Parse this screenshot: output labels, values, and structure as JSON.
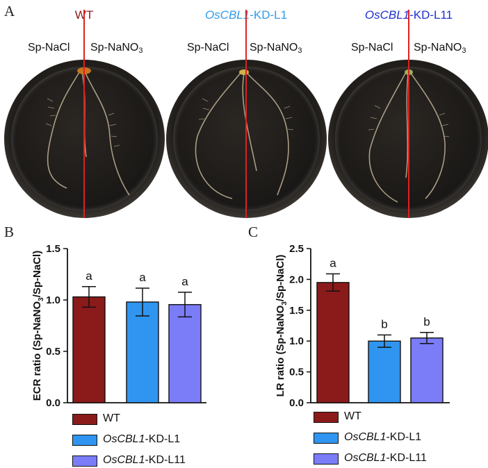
{
  "panel_labels": {
    "a": "A",
    "b": "B",
    "c": "C"
  },
  "photos": {
    "genotypes": [
      {
        "italic": "",
        "text": "WT",
        "color": "#8b1a1a"
      },
      {
        "italic": "OsCBL1",
        "text": "-KD-L1",
        "color": "#2f9be8"
      },
      {
        "italic": "OsCBL1",
        "text": "-KD-L11",
        "color": "#1f2fd0"
      }
    ],
    "condition_left": "Sp-NaCl",
    "condition_right_base": "Sp-NaNO",
    "condition_right_sub": "3"
  },
  "legend": [
    {
      "italic": "",
      "text": "WT",
      "color": "#8b1a1a"
    },
    {
      "italic": "OsCBL1",
      "text": "-KD-L1",
      "color": "#2f95f0"
    },
    {
      "italic": "OsCBL1",
      "text": "-KD-L11",
      "color": "#7b7cf7"
    }
  ],
  "chart_data": [
    {
      "type": "bar",
      "ylabel": "ECR ratio (Sp-NaNO3/Sp-NaCl)",
      "ylabel_parts": {
        "pre": "ECR ratio (Sp-NaNO",
        "sub": "3",
        "post": "/Sp-NaCl)"
      },
      "ylim": [
        0,
        1.5
      ],
      "yticks": [
        "0.0",
        "0.5",
        "1.0",
        "1.5"
      ],
      "categories": [
        "WT",
        "OsCBL1-KD-L1",
        "OsCBL1-KD-L11"
      ],
      "values": [
        1.03,
        0.98,
        0.955
      ],
      "errors": [
        0.1,
        0.135,
        0.12
      ],
      "letters": [
        "a",
        "a",
        "a"
      ],
      "colors": [
        "#8b1a1a",
        "#2f95f0",
        "#7b7cf7"
      ]
    },
    {
      "type": "bar",
      "ylabel": "LR ratio (Sp-NaNO3/Sp-NaCl)",
      "ylabel_parts": {
        "pre": "LR ratio (Sp-NaNO",
        "sub": "3",
        "post": "/Sp-NaCl)"
      },
      "ylim": [
        0,
        2.5
      ],
      "yticks": [
        "0.0",
        "0.5",
        "1.0",
        "1.5",
        "2.0",
        "2.5"
      ],
      "categories": [
        "WT",
        "OsCBL1-KD-L1",
        "OsCBL1-KD-L11"
      ],
      "values": [
        1.95,
        1.0,
        1.05
      ],
      "errors": [
        0.14,
        0.1,
        0.09
      ],
      "letters": [
        "a",
        "b",
        "b"
      ],
      "colors": [
        "#8b1a1a",
        "#2f95f0",
        "#7b7cf7"
      ]
    }
  ]
}
